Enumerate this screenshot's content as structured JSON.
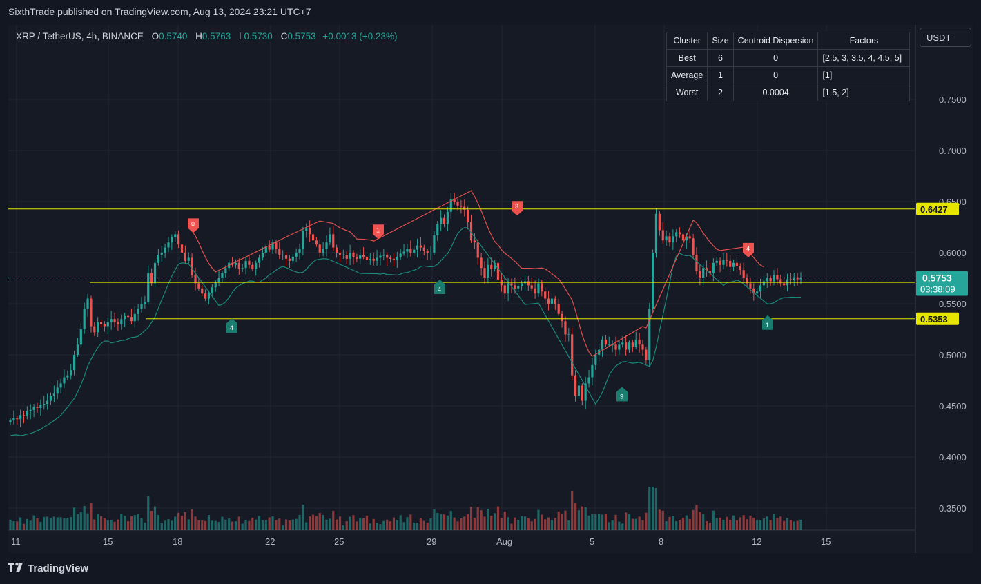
{
  "header": {
    "published": "SixthTrade published on TradingView.com, Aug 13, 2024 23:21 UTC+7"
  },
  "legend": {
    "symbol": "XRP / TetherUS, 4h, BINANCE",
    "o_label": "O",
    "o": "0.5740",
    "h_label": "H",
    "h": "0.5763",
    "l_label": "L",
    "l": "0.5730",
    "c_label": "C",
    "c": "0.5753",
    "change": "+0.0013 (+0.23%)"
  },
  "currency_button": "USDT",
  "table": {
    "headers": [
      "Cluster",
      "Size",
      "Centroid Dispersion",
      "Factors"
    ],
    "rows": [
      [
        "Best",
        "6",
        "0",
        "[2.5, 3, 3.5, 4, 4.5, 5]"
      ],
      [
        "Average",
        "1",
        "0",
        "[1]"
      ],
      [
        "Worst",
        "2",
        "0.0004",
        "[1.5, 2]"
      ]
    ]
  },
  "branding": "TradingView",
  "colors": {
    "up": "#26a69a",
    "down": "#ef5350",
    "level": "#e5e500",
    "background": "#161a25",
    "grid": "#232632"
  },
  "chart_data": {
    "type": "candlestick",
    "ylim": [
      0.32,
      0.76
    ],
    "y_ticks": [
      "0.3500",
      "0.4000",
      "0.4500",
      "0.5000",
      "0.5500",
      "0.6000",
      "0.6500",
      "0.7000",
      "0.7500"
    ],
    "x_tick_labels": [
      "11",
      "15",
      "18",
      "22",
      "25",
      "29",
      "Aug",
      "5",
      "8",
      "12",
      "15"
    ],
    "horizontal_levels": [
      {
        "value": 0.6427,
        "label": "0.6427"
      },
      {
        "value": 0.5709,
        "label": "0.5709"
      },
      {
        "value": 0.5353,
        "label": "0.5353"
      }
    ],
    "last_price": {
      "value": 0.5753,
      "label": "0.5753",
      "countdown": "03:38:09"
    },
    "signals": [
      {
        "text": "0",
        "type": "sell",
        "date": "Jul 18",
        "price": 0.62
      },
      {
        "text": "4",
        "type": "buy",
        "date": "Jul 20",
        "price": 0.535
      },
      {
        "text": "1",
        "type": "sell",
        "date": "Jul 27",
        "price": 0.614
      },
      {
        "text": "4",
        "type": "buy",
        "date": "Jul 30",
        "price": 0.573
      },
      {
        "text": "3",
        "type": "sell",
        "date": "Aug 1",
        "price": 0.637
      },
      {
        "text": "3",
        "type": "buy",
        "date": "Aug 6",
        "price": 0.468
      },
      {
        "text": "4",
        "type": "sell",
        "date": "Aug 11",
        "price": 0.596
      },
      {
        "text": "1",
        "type": "buy",
        "date": "Aug 12",
        "price": 0.538
      }
    ],
    "closes": [
      0.436,
      0.438,
      0.437,
      0.441,
      0.44,
      0.445,
      0.446,
      0.449,
      0.448,
      0.451,
      0.452,
      0.455,
      0.46,
      0.462,
      0.468,
      0.472,
      0.478,
      0.48,
      0.485,
      0.5,
      0.51,
      0.525,
      0.545,
      0.555,
      0.528,
      0.522,
      0.532,
      0.53,
      0.528,
      0.532,
      0.535,
      0.532,
      0.53,
      0.535,
      0.538,
      0.537,
      0.533,
      0.54,
      0.545,
      0.55,
      0.552,
      0.58,
      0.57,
      0.59,
      0.598,
      0.6,
      0.605,
      0.61,
      0.615,
      0.618,
      0.608,
      0.6,
      0.592,
      0.595,
      0.578,
      0.57,
      0.565,
      0.56,
      0.555,
      0.56,
      0.566,
      0.571,
      0.575,
      0.58,
      0.585,
      0.59,
      0.588,
      0.59,
      0.584,
      0.585,
      0.592,
      0.588,
      0.584,
      0.59,
      0.595,
      0.6,
      0.606,
      0.603,
      0.61,
      0.604,
      0.598,
      0.598,
      0.594,
      0.592,
      0.596,
      0.6,
      0.604,
      0.621,
      0.624,
      0.618,
      0.612,
      0.608,
      0.6,
      0.604,
      0.61,
      0.618,
      0.605,
      0.6,
      0.598,
      0.598,
      0.594,
      0.6,
      0.596,
      0.594,
      0.598,
      0.596,
      0.593,
      0.594,
      0.592,
      0.595,
      0.597,
      0.598,
      0.595,
      0.594,
      0.593,
      0.596,
      0.599,
      0.601,
      0.604,
      0.6,
      0.603,
      0.607,
      0.605,
      0.602,
      0.6,
      0.6,
      0.617,
      0.628,
      0.634,
      0.628,
      0.64,
      0.652,
      0.65,
      0.646,
      0.645,
      0.642,
      0.63,
      0.612,
      0.61,
      0.595,
      0.585,
      0.575,
      0.588,
      0.584,
      0.59,
      0.573,
      0.568,
      0.56,
      0.57,
      0.568,
      0.565,
      0.567,
      0.57,
      0.572,
      0.568,
      0.565,
      0.56,
      0.57,
      0.562,
      0.555,
      0.55,
      0.555,
      0.55,
      0.54,
      0.533,
      0.52,
      0.52,
      0.48,
      0.46,
      0.47,
      0.455,
      0.472,
      0.478,
      0.49,
      0.5,
      0.505,
      0.515,
      0.51,
      0.51,
      0.51,
      0.505,
      0.51,
      0.512,
      0.505,
      0.512,
      0.508,
      0.515,
      0.51,
      0.505,
      0.495,
      0.545,
      0.6,
      0.638,
      0.622,
      0.612,
      0.616,
      0.61,
      0.616,
      0.62,
      0.618,
      0.612,
      0.616,
      0.614,
      0.598,
      0.582,
      0.575,
      0.585,
      0.582,
      0.58,
      0.59,
      0.592,
      0.588,
      0.593,
      0.592,
      0.586,
      0.59,
      0.587,
      0.583,
      0.575,
      0.57,
      0.565,
      0.56,
      0.562,
      0.568,
      0.572,
      0.575,
      0.572,
      0.578,
      0.574,
      0.57,
      0.568,
      0.574,
      0.573,
      0.576,
      0.574,
      0.5753
    ],
    "volume_max": 0.63
  }
}
